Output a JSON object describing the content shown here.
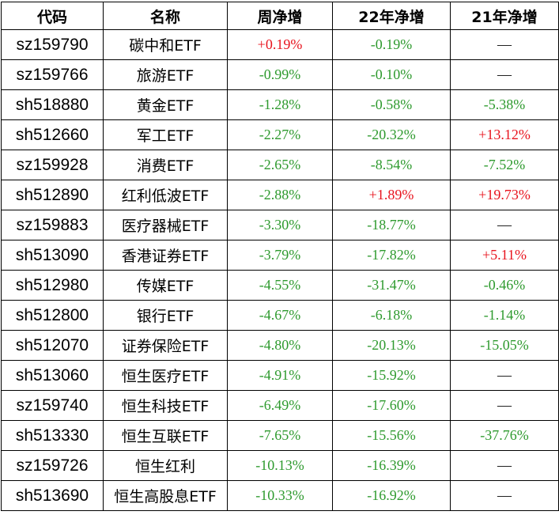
{
  "table": {
    "header": [
      "代码",
      "名称",
      "周净增",
      "22年净增",
      "21年净增"
    ],
    "rows": [
      [
        "sz159790",
        "碳中和ETF",
        "+0.19%",
        "-0.19%",
        "—"
      ],
      [
        "sz159766",
        "旅游ETF",
        "-0.99%",
        "-0.10%",
        "—"
      ],
      [
        "sh518880",
        "黄金ETF",
        "-1.28%",
        "-0.58%",
        "-5.38%"
      ],
      [
        "sh512660",
        "军工ETF",
        "-2.27%",
        "-20.32%",
        "+13.12%"
      ],
      [
        "sz159928",
        "消费ETF",
        "-2.65%",
        "-8.54%",
        "-7.52%"
      ],
      [
        "sh512890",
        "红利低波ETF",
        "-2.88%",
        "+1.89%",
        "+19.73%"
      ],
      [
        "sz159883",
        "医疗器械ETF",
        "-3.30%",
        "-18.77%",
        "—"
      ],
      [
        "sh513090",
        "香港证券ETF",
        "-3.79%",
        "-17.82%",
        "+5.11%"
      ],
      [
        "sh512980",
        "传媒ETF",
        "-4.55%",
        "-31.47%",
        "-0.46%"
      ],
      [
        "sh512800",
        "银行ETF",
        "-4.67%",
        "-6.18%",
        "-1.14%"
      ],
      [
        "sh512070",
        "证券保险ETF",
        "-4.80%",
        "-20.13%",
        "-15.05%"
      ],
      [
        "sh513060",
        "恒生医疗ETF",
        "-4.91%",
        "-15.92%",
        "—"
      ],
      [
        "sz159740",
        "恒生科技ETF",
        "-6.49%",
        "-17.60%",
        "—"
      ],
      [
        "sh513330",
        "恒生互联ETF",
        "-7.65%",
        "-15.56%",
        "-37.76%"
      ],
      [
        "sz159726",
        "恒生红利",
        "-10.13%",
        "-16.39%",
        "—"
      ],
      [
        "sh513690",
        "恒生高股息ETF",
        "-10.33%",
        "-16.92%",
        "—"
      ]
    ]
  }
}
